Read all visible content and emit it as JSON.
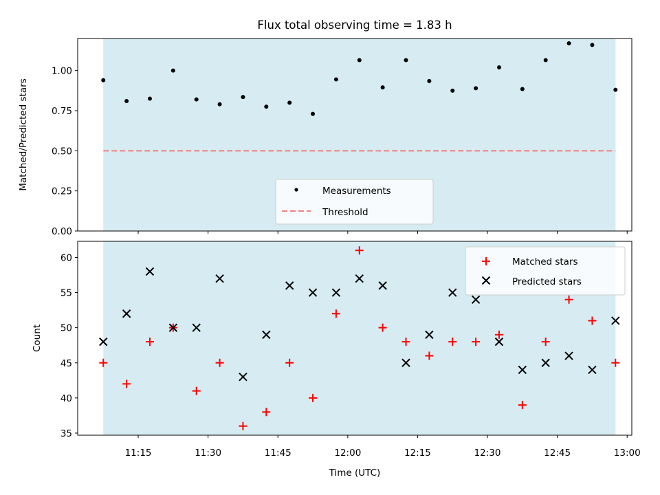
{
  "colors": {
    "shade": "#add8e6",
    "measurement": "#000000",
    "threshold": "#f08080",
    "matched": "#ff0000",
    "predicted": "#000000"
  },
  "chart_data": [
    {
      "type": "scatter",
      "title": "Flux total observing time = 1.83 h",
      "xlabel": "",
      "ylabel": "Matched/Predicted stars",
      "ylim": [
        0.0,
        1.2
      ],
      "yticks": [
        "0.00",
        "0.25",
        "0.50",
        "0.75",
        "1.00"
      ],
      "shaded_span": [
        "11:07:30",
        "12:57:30"
      ],
      "threshold": 0.5,
      "legend": {
        "placement": "lower center",
        "entries": [
          "Measurements",
          "Threshold"
        ]
      },
      "series": [
        {
          "name": "Measurements",
          "x": [
            "11:07:30",
            "11:12:30",
            "11:17:30",
            "11:22:30",
            "11:27:30",
            "11:32:30",
            "11:37:30",
            "11:42:30",
            "11:47:30",
            "11:52:30",
            "11:57:30",
            "12:02:30",
            "12:07:30",
            "12:12:30",
            "12:17:30",
            "12:22:30",
            "12:27:30",
            "12:32:30",
            "12:37:30",
            "12:42:30",
            "12:47:30",
            "12:52:30",
            "12:57:30"
          ],
          "y": [
            0.94,
            0.81,
            0.825,
            1.0,
            0.82,
            0.79,
            0.835,
            0.775,
            0.8,
            0.73,
            0.945,
            1.065,
            0.895,
            1.065,
            0.935,
            0.875,
            0.89,
            1.02,
            0.885,
            1.065,
            1.17,
            1.16,
            0.88
          ]
        }
      ]
    },
    {
      "type": "scatter",
      "title": "",
      "xlabel": "Time (UTC)",
      "ylabel": "Count",
      "ylim": [
        34.7,
        62.3
      ],
      "xlim": [
        "11:02:00",
        "13:01:00"
      ],
      "yticks": [
        "35",
        "40",
        "45",
        "50",
        "55",
        "60"
      ],
      "xticks": [
        "11:15",
        "11:30",
        "11:45",
        "12:00",
        "12:15",
        "12:30",
        "12:45",
        "13:00"
      ],
      "shaded_span": [
        "11:07:30",
        "12:57:30"
      ],
      "legend": {
        "placement": "top-right",
        "entries": [
          "Matched stars",
          "Predicted stars"
        ]
      },
      "series": [
        {
          "name": "Matched stars",
          "x": [
            "11:07:30",
            "11:12:30",
            "11:17:30",
            "11:22:30",
            "11:27:30",
            "11:32:30",
            "11:37:30",
            "11:42:30",
            "11:47:30",
            "11:52:30",
            "11:57:30",
            "12:02:30",
            "12:07:30",
            "12:12:30",
            "12:17:30",
            "12:22:30",
            "12:27:30",
            "12:32:30",
            "12:37:30",
            "12:42:30",
            "12:47:30",
            "12:52:30",
            "12:57:30"
          ],
          "y": [
            45,
            42,
            48,
            50,
            41,
            45,
            36,
            38,
            45,
            40,
            52,
            61,
            50,
            48,
            46,
            48,
            48,
            49,
            39,
            48,
            54,
            51,
            45
          ]
        },
        {
          "name": "Predicted stars",
          "x": [
            "11:07:30",
            "11:12:30",
            "11:17:30",
            "11:22:30",
            "11:27:30",
            "11:32:30",
            "11:37:30",
            "11:42:30",
            "11:47:30",
            "11:52:30",
            "11:57:30",
            "12:02:30",
            "12:07:30",
            "12:12:30",
            "12:17:30",
            "12:22:30",
            "12:27:30",
            "12:32:30",
            "12:37:30",
            "12:42:30",
            "12:47:30",
            "12:52:30",
            "12:57:30"
          ],
          "y": [
            48,
            52,
            58,
            50,
            50,
            57,
            43,
            49,
            56,
            55,
            55,
            57,
            56,
            45,
            49,
            55,
            54,
            48,
            44,
            45,
            46,
            44,
            51
          ]
        }
      ]
    }
  ]
}
